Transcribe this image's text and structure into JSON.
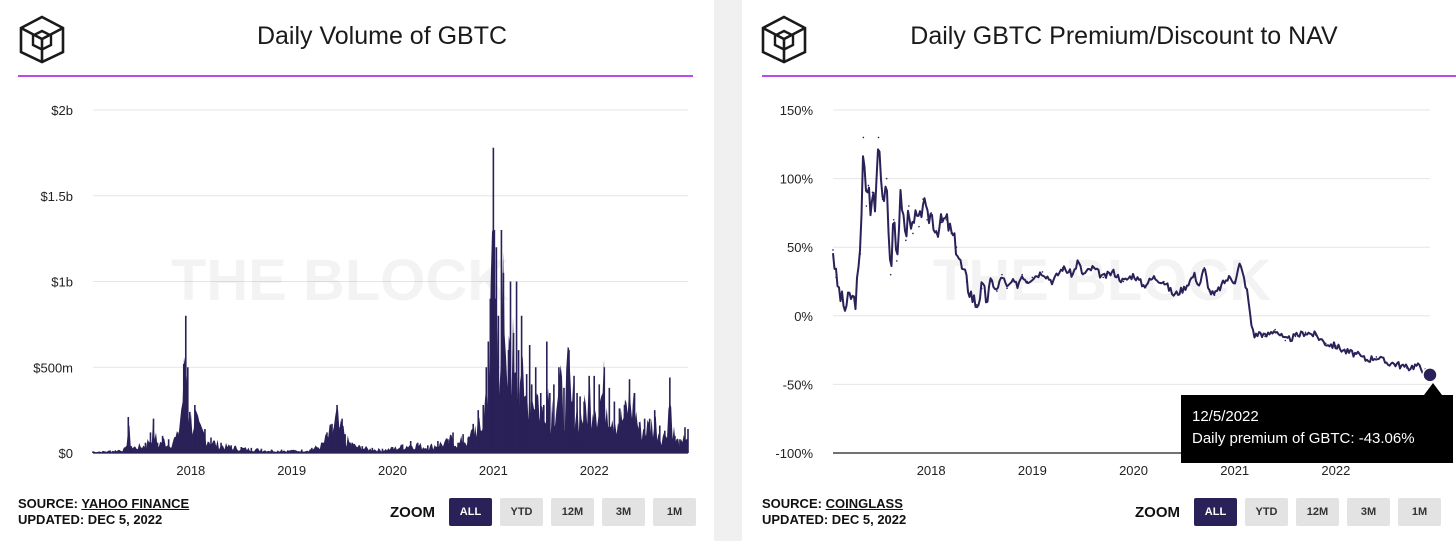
{
  "colors": {
    "series": "#2a2158",
    "accent": "#b84ce8",
    "grid": "#e6e6e6",
    "zero_line": "#444444",
    "tooltip_bg": "#000000"
  },
  "icons": {
    "logo": "the-block-cube-logo"
  },
  "watermark": "THE BLOCK",
  "left_panel": {
    "title": "Daily Volume of GBTC",
    "source_label": "SOURCE:",
    "source_name": "YAHOO FINANCE",
    "updated": "UPDATED: DEC 5, 2022",
    "zoom_label": "ZOOM",
    "zoom_buttons": [
      "ALL",
      "YTD",
      "12M",
      "3M",
      "1M"
    ],
    "zoom_selected": "ALL"
  },
  "right_panel": {
    "title": "Daily GBTC Premium/Discount to NAV",
    "source_label": "SOURCE:",
    "source_name": "COINGLASS",
    "updated": "UPDATED: DEC 5, 2022",
    "zoom_label": "ZOOM",
    "zoom_buttons": [
      "ALL",
      "YTD",
      "12M",
      "3M",
      "1M"
    ],
    "zoom_selected": "ALL",
    "tooltip": {
      "date": "12/5/2022",
      "text": "Daily premium of GBTC: -43.06%"
    }
  },
  "chart_data": [
    {
      "type": "area",
      "title": "Daily Volume of GBTC",
      "x_ticks": [
        "2018",
        "2019",
        "2020",
        "2021",
        "2022"
      ],
      "x_tick_values": [
        2018.0,
        2019.0,
        2020.0,
        2021.0,
        2022.0
      ],
      "xlim": [
        2017.03,
        2022.93
      ],
      "y_ticks": [
        "$0",
        "$500m",
        "$1b",
        "$1.5b",
        "$2b"
      ],
      "y_tick_values": [
        0,
        500,
        1000,
        1500,
        2000
      ],
      "ylim": [
        0,
        2000
      ],
      "y_unit": "millions USD",
      "grid": true,
      "x": [
        2017.03,
        2017.2,
        2017.35,
        2017.38,
        2017.41,
        2017.55,
        2017.6,
        2017.63,
        2017.67,
        2017.72,
        2017.78,
        2017.87,
        2017.93,
        2017.95,
        2017.97,
        2017.99,
        2018.04,
        2018.08,
        2018.14,
        2018.2,
        2018.3,
        2018.4,
        2018.5,
        2018.6,
        2018.7,
        2018.8,
        2018.9,
        2019.0,
        2019.1,
        2019.2,
        2019.3,
        2019.35,
        2019.4,
        2019.45,
        2019.48,
        2019.5,
        2019.53,
        2019.6,
        2019.7,
        2019.8,
        2019.9,
        2020.0,
        2020.1,
        2020.18,
        2020.25,
        2020.35,
        2020.45,
        2020.55,
        2020.6,
        2020.65,
        2020.7,
        2020.75,
        2020.8,
        2020.85,
        2020.87,
        2020.9,
        2020.93,
        2020.95,
        2020.97,
        2021.0,
        2021.01,
        2021.02,
        2021.03,
        2021.05,
        2021.08,
        2021.1,
        2021.12,
        2021.15,
        2021.17,
        2021.2,
        2021.23,
        2021.25,
        2021.28,
        2021.3,
        2021.33,
        2021.36,
        2021.38,
        2021.42,
        2021.47,
        2021.5,
        2021.53,
        2021.56,
        2021.6,
        2021.65,
        2021.7,
        2021.75,
        2021.78,
        2021.8,
        2021.83,
        2021.86,
        2021.9,
        2021.95,
        2022.0,
        2022.05,
        2022.1,
        2022.15,
        2022.2,
        2022.25,
        2022.3,
        2022.35,
        2022.4,
        2022.45,
        2022.5,
        2022.55,
        2022.6,
        2022.65,
        2022.7,
        2022.75,
        2022.8,
        2022.85,
        2022.88,
        2022.9,
        2022.93
      ],
      "values": [
        10,
        15,
        30,
        210,
        40,
        60,
        120,
        200,
        60,
        100,
        80,
        120,
        520,
        800,
        500,
        240,
        280,
        170,
        140,
        90,
        60,
        45,
        35,
        30,
        25,
        20,
        20,
        18,
        20,
        30,
        60,
        120,
        170,
        280,
        150,
        200,
        110,
        60,
        40,
        30,
        25,
        35,
        50,
        70,
        60,
        45,
        70,
        80,
        120,
        60,
        110,
        90,
        170,
        250,
        130,
        280,
        500,
        650,
        900,
        1780,
        1300,
        900,
        1200,
        800,
        1300,
        1050,
        500,
        600,
        1000,
        700,
        1000,
        600,
        800,
        300,
        460,
        630,
        400,
        500,
        350,
        280,
        650,
        350,
        400,
        500,
        380,
        600,
        300,
        450,
        350,
        330,
        300,
        450,
        450,
        400,
        500,
        380,
        300,
        260,
        280,
        430,
        350,
        180,
        200,
        200,
        250,
        160,
        130,
        440,
        100,
        80,
        60,
        150,
        140
      ]
    },
    {
      "type": "line",
      "title": "Daily GBTC Premium/Discount to NAV",
      "series": [
        {
          "name": "Daily premium of GBTC"
        }
      ],
      "x_ticks": [
        "2018",
        "2019",
        "2020",
        "2021",
        "2022"
      ],
      "x_tick_values": [
        2018.0,
        2019.0,
        2020.0,
        2021.0,
        2022.0
      ],
      "xlim": [
        2017.03,
        2022.93
      ],
      "y_ticks": [
        "-100%",
        "-50%",
        "0%",
        "50%",
        "100%",
        "150%"
      ],
      "y_tick_values": [
        -100,
        -50,
        0,
        50,
        100,
        150
      ],
      "ylim": [
        -100,
        150
      ],
      "grid": true,
      "x": [
        2017.03,
        2017.06,
        2017.1,
        2017.15,
        2017.2,
        2017.25,
        2017.3,
        2017.33,
        2017.36,
        2017.38,
        2017.4,
        2017.42,
        2017.45,
        2017.48,
        2017.52,
        2017.56,
        2017.6,
        2017.63,
        2017.66,
        2017.7,
        2017.75,
        2017.78,
        2017.82,
        2017.85,
        2017.88,
        2017.92,
        2017.96,
        2018.0,
        2018.05,
        2018.1,
        2018.15,
        2018.2,
        2018.25,
        2018.3,
        2018.35,
        2018.4,
        2018.45,
        2018.5,
        2018.55,
        2018.6,
        2018.65,
        2018.7,
        2018.75,
        2018.8,
        2018.85,
        2018.9,
        2018.95,
        2019.0,
        2019.1,
        2019.2,
        2019.3,
        2019.4,
        2019.45,
        2019.5,
        2019.6,
        2019.7,
        2019.8,
        2019.9,
        2020.0,
        2020.1,
        2020.2,
        2020.3,
        2020.4,
        2020.5,
        2020.6,
        2020.65,
        2020.7,
        2020.75,
        2020.8,
        2020.85,
        2020.9,
        2020.95,
        2021.0,
        2021.05,
        2021.1,
        2021.13,
        2021.16,
        2021.2,
        2021.25,
        2021.3,
        2021.4,
        2021.5,
        2021.6,
        2021.7,
        2021.8,
        2021.9,
        2022.0,
        2022.1,
        2022.2,
        2022.3,
        2022.4,
        2022.5,
        2022.6,
        2022.7,
        2022.8,
        2022.93
      ],
      "values": [
        48,
        28,
        15,
        5,
        15,
        10,
        45,
        130,
        80,
        95,
        75,
        90,
        80,
        130,
        85,
        100,
        30,
        70,
        40,
        90,
        55,
        80,
        60,
        75,
        65,
        85,
        70,
        75,
        62,
        68,
        70,
        60,
        50,
        35,
        25,
        15,
        8,
        20,
        12,
        25,
        18,
        30,
        20,
        25,
        22,
        30,
        25,
        28,
        32,
        25,
        35,
        30,
        40,
        30,
        35,
        28,
        32,
        25,
        30,
        22,
        28,
        25,
        15,
        20,
        30,
        22,
        35,
        18,
        15,
        20,
        25,
        28,
        25,
        38,
        25,
        15,
        -5,
        -15,
        -12,
        -15,
        -10,
        -18,
        -15,
        -12,
        -14,
        -20,
        -22,
        -26,
        -28,
        -32,
        -30,
        -34,
        -35,
        -38,
        -36,
        -43.06
      ]
    }
  ]
}
